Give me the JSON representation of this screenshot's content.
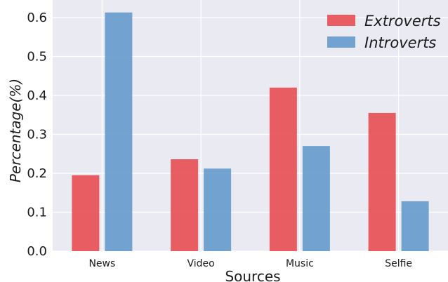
{
  "chart_data": {
    "type": "bar",
    "categories": [
      "News",
      "Video",
      "Music",
      "Selfie"
    ],
    "series": [
      {
        "name": "Extroverts",
        "values": [
          0.195,
          0.236,
          0.42,
          0.355
        ],
        "color": "#e8555a"
      },
      {
        "name": "Introverts",
        "values": [
          0.613,
          0.212,
          0.27,
          0.128
        ],
        "color": "#6b9fcd"
      }
    ],
    "xlabel": "Sources",
    "ylabel": "Percentage(%)",
    "ylim": [
      0,
      0.645
    ],
    "yticks": [
      "0.0",
      "0.1",
      "0.2",
      "0.3",
      "0.4",
      "0.5",
      "0.6"
    ],
    "grid": true,
    "legend_position": "top-right",
    "background_color": "#eaeaf2",
    "grid_color": "#ffffff"
  }
}
